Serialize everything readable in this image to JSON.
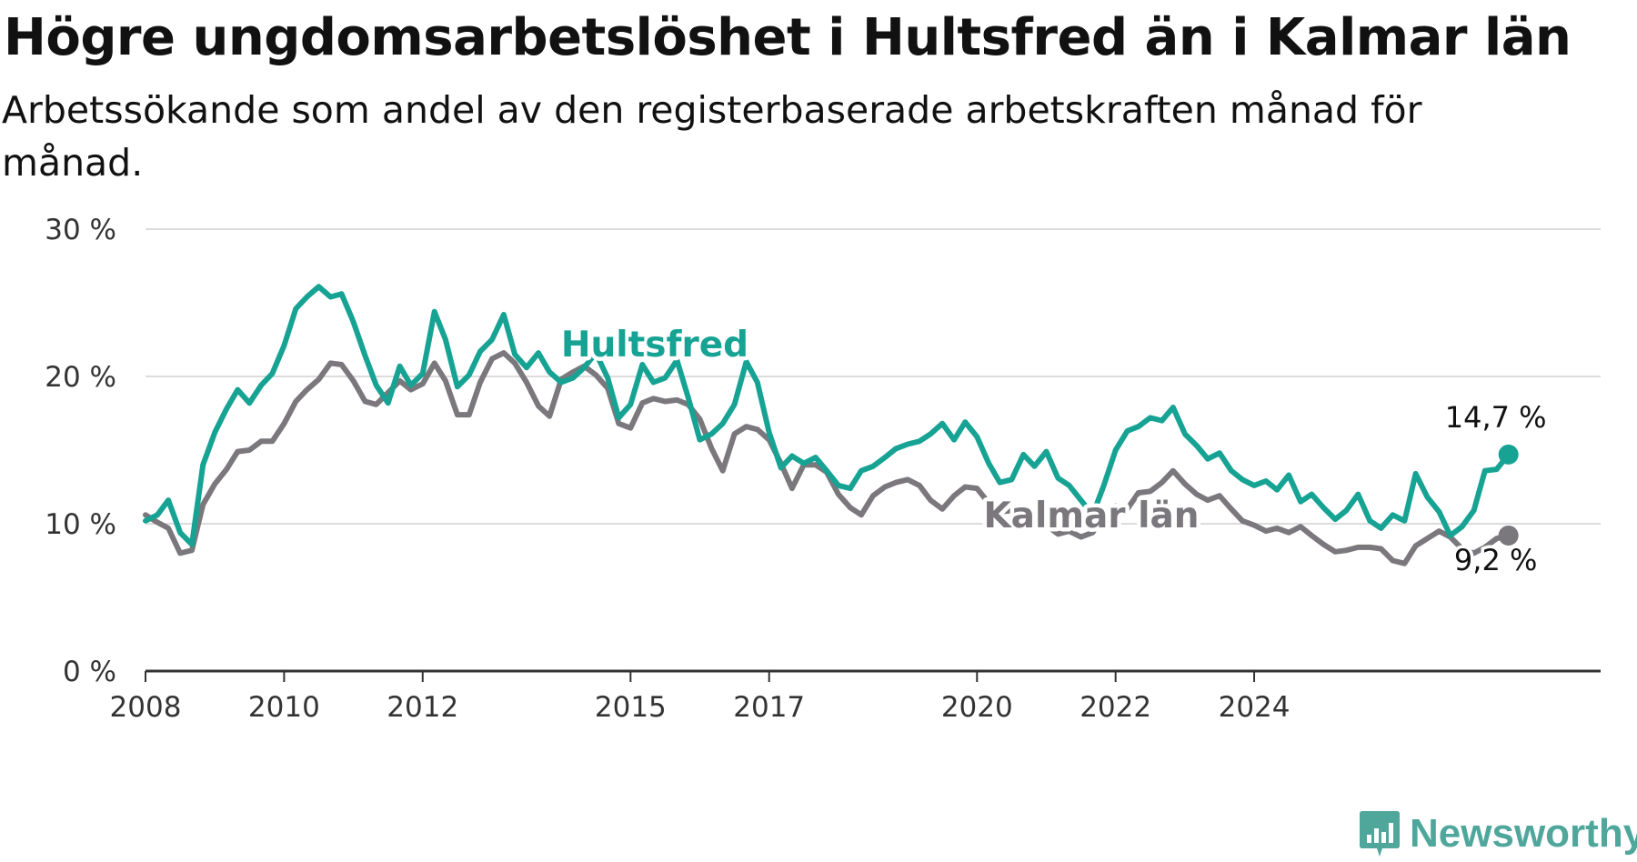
{
  "title": "Högre ungdomsarbetslöshet i Hultsfred än i Kalmar län",
  "subtitle": "Arbetssökande som andel av den registerbaserade arbetskraften månad för månad.",
  "brand": {
    "name": "Newsworthy",
    "icon": "newsworthy-logo-icon",
    "color": "#4fa79c"
  },
  "chart_data": {
    "type": "line",
    "x_unit": "year",
    "y_unit": "%",
    "ylim": [
      0,
      30
    ],
    "y_ticks": [
      0,
      10,
      20,
      30
    ],
    "y_tick_labels": [
      "0 %",
      "10 %",
      "20 %",
      "30 %"
    ],
    "x_ticks": [
      2008,
      2010,
      2012,
      2015,
      2017,
      2020,
      2022,
      2024
    ],
    "x_tick_labels": [
      "2008",
      "2010",
      "2012",
      "2015",
      "2017",
      "2020",
      "2022",
      "2024"
    ],
    "grid": true,
    "series": [
      {
        "name": "Hultsfred",
        "color": "#16a394",
        "end_label": "14,7 %",
        "points": [
          [
            2008.0,
            10.2
          ],
          [
            2008.17,
            10.6
          ],
          [
            2008.33,
            11.6
          ],
          [
            2008.5,
            9.4
          ],
          [
            2008.67,
            8.6
          ],
          [
            2008.83,
            14.0
          ],
          [
            2009.0,
            16.2
          ],
          [
            2009.17,
            17.8
          ],
          [
            2009.33,
            19.1
          ],
          [
            2009.5,
            18.2
          ],
          [
            2009.67,
            19.4
          ],
          [
            2009.83,
            20.2
          ],
          [
            2010.0,
            22.1
          ],
          [
            2010.17,
            24.6
          ],
          [
            2010.33,
            25.4
          ],
          [
            2010.5,
            26.1
          ],
          [
            2010.67,
            25.4
          ],
          [
            2010.83,
            25.6
          ],
          [
            2011.0,
            23.7
          ],
          [
            2011.17,
            21.4
          ],
          [
            2011.33,
            19.4
          ],
          [
            2011.5,
            18.2
          ],
          [
            2011.67,
            20.7
          ],
          [
            2011.83,
            19.4
          ],
          [
            2012.0,
            20.2
          ],
          [
            2012.17,
            24.4
          ],
          [
            2012.33,
            22.5
          ],
          [
            2012.5,
            19.3
          ],
          [
            2012.67,
            20.1
          ],
          [
            2012.83,
            21.7
          ],
          [
            2013.0,
            22.5
          ],
          [
            2013.17,
            24.2
          ],
          [
            2013.33,
            21.5
          ],
          [
            2013.5,
            20.6
          ],
          [
            2013.67,
            21.6
          ],
          [
            2013.83,
            20.3
          ],
          [
            2014.0,
            19.6
          ],
          [
            2014.17,
            19.9
          ],
          [
            2014.33,
            20.6
          ],
          [
            2014.5,
            21.6
          ],
          [
            2014.67,
            19.9
          ],
          [
            2014.83,
            17.2
          ],
          [
            2015.0,
            18.1
          ],
          [
            2015.17,
            20.8
          ],
          [
            2015.33,
            19.6
          ],
          [
            2015.5,
            19.9
          ],
          [
            2015.67,
            21.1
          ],
          [
            2015.83,
            18.6
          ],
          [
            2016.0,
            15.7
          ],
          [
            2016.17,
            16.1
          ],
          [
            2016.33,
            16.8
          ],
          [
            2016.5,
            18.1
          ],
          [
            2016.67,
            21.0
          ],
          [
            2016.83,
            19.6
          ],
          [
            2017.0,
            16.2
          ],
          [
            2017.17,
            13.8
          ],
          [
            2017.33,
            14.6
          ],
          [
            2017.5,
            14.1
          ],
          [
            2017.67,
            14.5
          ],
          [
            2017.83,
            13.6
          ],
          [
            2018.0,
            12.6
          ],
          [
            2018.17,
            12.4
          ],
          [
            2018.33,
            13.6
          ],
          [
            2018.5,
            13.9
          ],
          [
            2018.67,
            14.5
          ],
          [
            2018.83,
            15.1
          ],
          [
            2019.0,
            15.4
          ],
          [
            2019.17,
            15.6
          ],
          [
            2019.33,
            16.1
          ],
          [
            2019.5,
            16.8
          ],
          [
            2019.67,
            15.7
          ],
          [
            2019.83,
            16.9
          ],
          [
            2020.0,
            15.9
          ],
          [
            2020.17,
            14.1
          ],
          [
            2020.33,
            12.8
          ],
          [
            2020.5,
            13.0
          ],
          [
            2020.67,
            14.7
          ],
          [
            2020.83,
            13.9
          ],
          [
            2021.0,
            14.9
          ],
          [
            2021.17,
            13.1
          ],
          [
            2021.33,
            12.6
          ],
          [
            2021.5,
            11.6
          ],
          [
            2021.67,
            10.6
          ],
          [
            2021.83,
            12.6
          ],
          [
            2022.0,
            15.0
          ],
          [
            2022.17,
            16.3
          ],
          [
            2022.33,
            16.6
          ],
          [
            2022.5,
            17.2
          ],
          [
            2022.67,
            17.0
          ],
          [
            2022.83,
            17.9
          ],
          [
            2023.0,
            16.1
          ],
          [
            2023.17,
            15.3
          ],
          [
            2023.33,
            14.4
          ],
          [
            2023.5,
            14.8
          ],
          [
            2023.67,
            13.6
          ],
          [
            2023.83,
            13.0
          ],
          [
            2024.0,
            12.6
          ],
          [
            2024.17,
            12.9
          ],
          [
            2024.33,
            12.3
          ],
          [
            2024.5,
            13.3
          ],
          [
            2024.67,
            11.5
          ],
          [
            2024.83,
            12.0
          ],
          [
            2025.0,
            11.1
          ],
          [
            2025.17,
            10.3
          ],
          [
            2025.33,
            10.9
          ],
          [
            2025.5,
            12.0
          ],
          [
            2025.67,
            10.2
          ],
          [
            2025.83,
            9.7
          ],
          [
            2026.0,
            10.6
          ],
          [
            2026.17,
            10.2
          ],
          [
            2026.33,
            13.4
          ],
          [
            2026.5,
            11.8
          ],
          [
            2026.67,
            10.8
          ],
          [
            2026.83,
            9.2
          ],
          [
            2027.0,
            9.8
          ],
          [
            2027.17,
            10.9
          ],
          [
            2027.33,
            13.6
          ],
          [
            2027.5,
            13.7
          ],
          [
            2027.67,
            14.7
          ]
        ]
      },
      {
        "name": "Kalmar län",
        "color": "#7a787c",
        "end_label": "9,2 %",
        "points": [
          [
            2008.0,
            10.6
          ],
          [
            2008.17,
            10.1
          ],
          [
            2008.33,
            9.7
          ],
          [
            2008.5,
            8.0
          ],
          [
            2008.67,
            8.2
          ],
          [
            2008.83,
            11.3
          ],
          [
            2009.0,
            12.7
          ],
          [
            2009.17,
            13.7
          ],
          [
            2009.33,
            14.9
          ],
          [
            2009.5,
            15.0
          ],
          [
            2009.67,
            15.6
          ],
          [
            2009.83,
            15.6
          ],
          [
            2010.0,
            16.8
          ],
          [
            2010.17,
            18.3
          ],
          [
            2010.33,
            19.1
          ],
          [
            2010.5,
            19.8
          ],
          [
            2010.67,
            20.9
          ],
          [
            2010.83,
            20.8
          ],
          [
            2011.0,
            19.7
          ],
          [
            2011.17,
            18.3
          ],
          [
            2011.33,
            18.1
          ],
          [
            2011.5,
            18.9
          ],
          [
            2011.67,
            19.7
          ],
          [
            2011.83,
            19.1
          ],
          [
            2012.0,
            19.5
          ],
          [
            2012.17,
            20.9
          ],
          [
            2012.33,
            19.7
          ],
          [
            2012.5,
            17.4
          ],
          [
            2012.67,
            17.4
          ],
          [
            2012.83,
            19.6
          ],
          [
            2013.0,
            21.2
          ],
          [
            2013.17,
            21.6
          ],
          [
            2013.33,
            20.9
          ],
          [
            2013.5,
            19.6
          ],
          [
            2013.67,
            18.0
          ],
          [
            2013.83,
            17.3
          ],
          [
            2014.0,
            19.8
          ],
          [
            2014.17,
            20.3
          ],
          [
            2014.33,
            20.7
          ],
          [
            2014.5,
            20.1
          ],
          [
            2014.67,
            19.2
          ],
          [
            2014.83,
            16.8
          ],
          [
            2015.0,
            16.5
          ],
          [
            2015.17,
            18.2
          ],
          [
            2015.33,
            18.5
          ],
          [
            2015.5,
            18.3
          ],
          [
            2015.67,
            18.4
          ],
          [
            2015.83,
            18.1
          ],
          [
            2016.0,
            17.1
          ],
          [
            2016.17,
            15.1
          ],
          [
            2016.33,
            13.6
          ],
          [
            2016.5,
            16.1
          ],
          [
            2016.67,
            16.6
          ],
          [
            2016.83,
            16.4
          ],
          [
            2017.0,
            15.7
          ],
          [
            2017.17,
            14.1
          ],
          [
            2017.33,
            12.4
          ],
          [
            2017.5,
            14.0
          ],
          [
            2017.67,
            14.0
          ],
          [
            2017.83,
            13.5
          ],
          [
            2018.0,
            12.0
          ],
          [
            2018.17,
            11.1
          ],
          [
            2018.33,
            10.6
          ],
          [
            2018.5,
            11.9
          ],
          [
            2018.67,
            12.5
          ],
          [
            2018.83,
            12.8
          ],
          [
            2019.0,
            13.0
          ],
          [
            2019.17,
            12.6
          ],
          [
            2019.33,
            11.6
          ],
          [
            2019.5,
            11.0
          ],
          [
            2019.67,
            11.9
          ],
          [
            2019.83,
            12.5
          ],
          [
            2020.0,
            12.4
          ],
          [
            2020.17,
            11.4
          ],
          [
            2020.33,
            10.8
          ],
          [
            2020.5,
            10.9
          ],
          [
            2020.67,
            10.6
          ],
          [
            2020.83,
            10.1
          ],
          [
            2021.0,
            9.9
          ],
          [
            2021.17,
            9.3
          ],
          [
            2021.33,
            9.5
          ],
          [
            2021.5,
            9.1
          ],
          [
            2021.67,
            9.4
          ],
          [
            2021.83,
            10.8
          ],
          [
            2022.0,
            11.2
          ],
          [
            2022.17,
            11.0
          ],
          [
            2022.33,
            12.1
          ],
          [
            2022.5,
            12.2
          ],
          [
            2022.67,
            12.8
          ],
          [
            2022.83,
            13.6
          ],
          [
            2023.0,
            12.7
          ],
          [
            2023.17,
            12.0
          ],
          [
            2023.33,
            11.6
          ],
          [
            2023.5,
            11.9
          ],
          [
            2023.67,
            11.0
          ],
          [
            2023.83,
            10.2
          ],
          [
            2024.0,
            9.9
          ],
          [
            2024.17,
            9.5
          ],
          [
            2024.33,
            9.7
          ],
          [
            2024.5,
            9.4
          ],
          [
            2024.67,
            9.8
          ],
          [
            2024.83,
            9.2
          ],
          [
            2025.0,
            8.6
          ],
          [
            2025.17,
            8.1
          ],
          [
            2025.33,
            8.2
          ],
          [
            2025.5,
            8.4
          ],
          [
            2025.67,
            8.4
          ],
          [
            2025.83,
            8.3
          ],
          [
            2026.0,
            7.5
          ],
          [
            2026.17,
            7.3
          ],
          [
            2026.33,
            8.5
          ],
          [
            2026.5,
            9.0
          ],
          [
            2026.67,
            9.5
          ],
          [
            2026.83,
            9.1
          ],
          [
            2027.0,
            8.3
          ],
          [
            2027.17,
            8.0
          ],
          [
            2027.33,
            8.4
          ],
          [
            2027.5,
            9.0
          ],
          [
            2027.67,
            9.2
          ]
        ]
      }
    ]
  }
}
